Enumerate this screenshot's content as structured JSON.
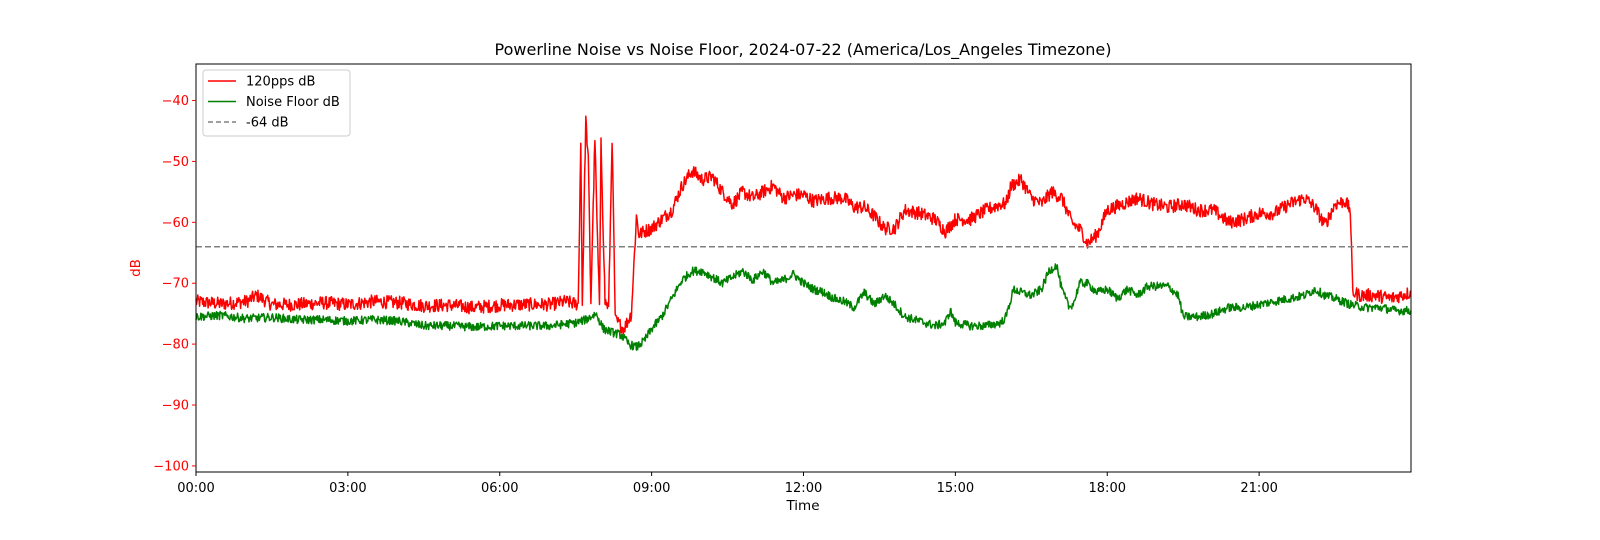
{
  "chart_data": {
    "type": "line",
    "title": "Powerline Noise vs Noise Floor, 2024-07-22 (America/Los_Angeles Timezone)",
    "xlabel": "Time",
    "ylabel": "dB",
    "ylabel_color": "#ff0000",
    "xlim": [
      0,
      24
    ],
    "ylim": [
      -101,
      -34
    ],
    "x_ticks": [
      {
        "value": 0,
        "label": "00:00"
      },
      {
        "value": 3,
        "label": "03:00"
      },
      {
        "value": 6,
        "label": "06:00"
      },
      {
        "value": 9,
        "label": "09:00"
      },
      {
        "value": 12,
        "label": "12:00"
      },
      {
        "value": 15,
        "label": "15:00"
      },
      {
        "value": 18,
        "label": "18:00"
      },
      {
        "value": 21,
        "label": "21:00"
      }
    ],
    "y_ticks": [
      {
        "value": -40,
        "label": "−40"
      },
      {
        "value": -50,
        "label": "−50"
      },
      {
        "value": -60,
        "label": "−60"
      },
      {
        "value": -70,
        "label": "−70"
      },
      {
        "value": -80,
        "label": "−80"
      },
      {
        "value": -90,
        "label": "−90"
      },
      {
        "value": -100,
        "label": "−100"
      }
    ],
    "y_tick_color": "#ff0000",
    "grid": false,
    "legend_position": "top-left",
    "series": [
      {
        "name": "120pps dB",
        "color": "#ff0000",
        "style": "solid",
        "points": [
          [
            0.0,
            -73.0
          ],
          [
            0.5,
            -73.4
          ],
          [
            1.0,
            -73.0
          ],
          [
            1.2,
            -72.0
          ],
          [
            1.5,
            -73.5
          ],
          [
            2.0,
            -73.5
          ],
          [
            2.5,
            -73.2
          ],
          [
            3.0,
            -73.5
          ],
          [
            3.5,
            -73.0
          ],
          [
            4.0,
            -73.2
          ],
          [
            4.5,
            -73.7
          ],
          [
            5.0,
            -73.6
          ],
          [
            5.5,
            -74.0
          ],
          [
            6.0,
            -73.6
          ],
          [
            6.5,
            -73.5
          ],
          [
            7.0,
            -73.5
          ],
          [
            7.3,
            -73.0
          ],
          [
            7.55,
            -73.5
          ],
          [
            7.6,
            -47.0
          ],
          [
            7.63,
            -73.5
          ],
          [
            7.7,
            -43.0
          ],
          [
            7.75,
            -50.0
          ],
          [
            7.8,
            -73.0
          ],
          [
            7.88,
            -46.0
          ],
          [
            7.92,
            -60.0
          ],
          [
            7.97,
            -73.5
          ],
          [
            8.0,
            -47.0
          ],
          [
            8.08,
            -73.0
          ],
          [
            8.15,
            -74.0
          ],
          [
            8.22,
            -46.0
          ],
          [
            8.28,
            -76.0
          ],
          [
            8.45,
            -77.5
          ],
          [
            8.6,
            -75.0
          ],
          [
            8.7,
            -59.0
          ],
          [
            8.75,
            -62.0
          ],
          [
            8.85,
            -61.5
          ],
          [
            9.0,
            -61.0
          ],
          [
            9.2,
            -59.5
          ],
          [
            9.4,
            -58.0
          ],
          [
            9.6,
            -54.0
          ],
          [
            9.8,
            -51.5
          ],
          [
            10.0,
            -53.0
          ],
          [
            10.2,
            -52.5
          ],
          [
            10.4,
            -55.0
          ],
          [
            10.6,
            -57.0
          ],
          [
            10.8,
            -55.0
          ],
          [
            11.0,
            -56.0
          ],
          [
            11.2,
            -55.0
          ],
          [
            11.4,
            -54.0
          ],
          [
            11.6,
            -56.0
          ],
          [
            11.8,
            -55.5
          ],
          [
            12.0,
            -55.5
          ],
          [
            12.2,
            -56.5
          ],
          [
            12.5,
            -56.0
          ],
          [
            12.8,
            -56.0
          ],
          [
            13.0,
            -57.5
          ],
          [
            13.2,
            -57.5
          ],
          [
            13.4,
            -59.0
          ],
          [
            13.6,
            -61.0
          ],
          [
            13.8,
            -61.0
          ],
          [
            14.0,
            -58.0
          ],
          [
            14.3,
            -58.5
          ],
          [
            14.6,
            -59.5
          ],
          [
            14.8,
            -61.5
          ],
          [
            15.0,
            -59.5
          ],
          [
            15.3,
            -59.5
          ],
          [
            15.6,
            -58.0
          ],
          [
            15.9,
            -57.0
          ],
          [
            16.0,
            -57.0
          ],
          [
            16.1,
            -54.0
          ],
          [
            16.3,
            -53.0
          ],
          [
            16.5,
            -56.0
          ],
          [
            16.7,
            -57.0
          ],
          [
            16.9,
            -55.0
          ],
          [
            17.1,
            -56.0
          ],
          [
            17.3,
            -60.0
          ],
          [
            17.5,
            -61.5
          ],
          [
            17.6,
            -63.5
          ],
          [
            17.8,
            -62.0
          ],
          [
            18.0,
            -58.0
          ],
          [
            18.3,
            -57.0
          ],
          [
            18.6,
            -56.0
          ],
          [
            18.9,
            -57.0
          ],
          [
            19.2,
            -57.5
          ],
          [
            19.5,
            -57.0
          ],
          [
            19.8,
            -58.0
          ],
          [
            20.1,
            -58.0
          ],
          [
            20.4,
            -60.0
          ],
          [
            20.7,
            -59.5
          ],
          [
            21.0,
            -58.5
          ],
          [
            21.3,
            -58.5
          ],
          [
            21.6,
            -57.0
          ],
          [
            21.9,
            -56.0
          ],
          [
            22.1,
            -57.5
          ],
          [
            22.3,
            -60.5
          ],
          [
            22.5,
            -57.0
          ],
          [
            22.7,
            -56.5
          ],
          [
            22.8,
            -58.0
          ],
          [
            22.85,
            -71.5
          ],
          [
            23.0,
            -72.0
          ],
          [
            23.3,
            -72.0
          ],
          [
            23.6,
            -72.5
          ],
          [
            24.0,
            -71.5
          ]
        ]
      },
      {
        "name": "Noise Floor dB",
        "color": "#008000",
        "style": "solid",
        "points": [
          [
            0.0,
            -75.5
          ],
          [
            0.5,
            -75.3
          ],
          [
            1.0,
            -75.8
          ],
          [
            1.5,
            -75.6
          ],
          [
            2.0,
            -76.0
          ],
          [
            2.5,
            -76.0
          ],
          [
            3.0,
            -76.2
          ],
          [
            3.5,
            -76.0
          ],
          [
            4.0,
            -76.2
          ],
          [
            4.5,
            -77.0
          ],
          [
            5.0,
            -77.0
          ],
          [
            5.5,
            -77.2
          ],
          [
            6.0,
            -77.0
          ],
          [
            6.5,
            -77.0
          ],
          [
            7.0,
            -77.0
          ],
          [
            7.5,
            -76.5
          ],
          [
            7.7,
            -76.0
          ],
          [
            7.9,
            -75.0
          ],
          [
            8.05,
            -77.5
          ],
          [
            8.2,
            -78.0
          ],
          [
            8.4,
            -78.5
          ],
          [
            8.55,
            -80.0
          ],
          [
            8.7,
            -80.5
          ],
          [
            8.85,
            -79.5
          ],
          [
            9.0,
            -77.5
          ],
          [
            9.2,
            -75.5
          ],
          [
            9.4,
            -72.5
          ],
          [
            9.6,
            -69.5
          ],
          [
            9.8,
            -68.0
          ],
          [
            10.0,
            -68.0
          ],
          [
            10.2,
            -69.0
          ],
          [
            10.4,
            -70.0
          ],
          [
            10.6,
            -69.0
          ],
          [
            10.8,
            -68.0
          ],
          [
            11.0,
            -69.5
          ],
          [
            11.2,
            -68.0
          ],
          [
            11.4,
            -70.0
          ],
          [
            11.6,
            -69.5
          ],
          [
            11.8,
            -68.5
          ],
          [
            12.0,
            -70.0
          ],
          [
            12.2,
            -71.0
          ],
          [
            12.4,
            -71.5
          ],
          [
            12.6,
            -72.5
          ],
          [
            12.8,
            -73.0
          ],
          [
            13.0,
            -74.0
          ],
          [
            13.2,
            -71.5
          ],
          [
            13.4,
            -73.5
          ],
          [
            13.6,
            -72.0
          ],
          [
            13.8,
            -73.5
          ],
          [
            14.0,
            -75.5
          ],
          [
            14.2,
            -76.0
          ],
          [
            14.4,
            -76.5
          ],
          [
            14.6,
            -77.0
          ],
          [
            14.8,
            -76.5
          ],
          [
            14.9,
            -74.5
          ],
          [
            15.0,
            -76.5
          ],
          [
            15.3,
            -77.0
          ],
          [
            15.6,
            -77.0
          ],
          [
            15.9,
            -76.5
          ],
          [
            16.0,
            -75.5
          ],
          [
            16.15,
            -71.0
          ],
          [
            16.3,
            -71.5
          ],
          [
            16.5,
            -72.0
          ],
          [
            16.7,
            -71.0
          ],
          [
            16.85,
            -68.0
          ],
          [
            17.0,
            -67.0
          ],
          [
            17.1,
            -71.0
          ],
          [
            17.25,
            -74.0
          ],
          [
            17.35,
            -73.0
          ],
          [
            17.45,
            -70.0
          ],
          [
            17.6,
            -70.0
          ],
          [
            17.8,
            -71.5
          ],
          [
            18.0,
            -71.0
          ],
          [
            18.2,
            -72.5
          ],
          [
            18.4,
            -71.0
          ],
          [
            18.6,
            -72.0
          ],
          [
            18.8,
            -70.5
          ],
          [
            19.0,
            -70.5
          ],
          [
            19.2,
            -70.5
          ],
          [
            19.4,
            -72.0
          ],
          [
            19.5,
            -75.5
          ],
          [
            19.8,
            -75.5
          ],
          [
            20.1,
            -75.0
          ],
          [
            20.4,
            -74.0
          ],
          [
            20.7,
            -74.0
          ],
          [
            21.0,
            -73.5
          ],
          [
            21.3,
            -73.0
          ],
          [
            21.6,
            -72.5
          ],
          [
            21.9,
            -72.0
          ],
          [
            22.1,
            -71.0
          ],
          [
            22.3,
            -72.0
          ],
          [
            22.5,
            -72.5
          ],
          [
            22.8,
            -73.5
          ],
          [
            23.1,
            -74.0
          ],
          [
            23.4,
            -74.0
          ],
          [
            23.7,
            -74.5
          ],
          [
            24.0,
            -74.5
          ]
        ]
      },
      {
        "name": "-64 dB",
        "color": "#808080",
        "style": "dashed",
        "points": [
          [
            0,
            -64
          ],
          [
            24,
            -64
          ]
        ]
      }
    ]
  }
}
